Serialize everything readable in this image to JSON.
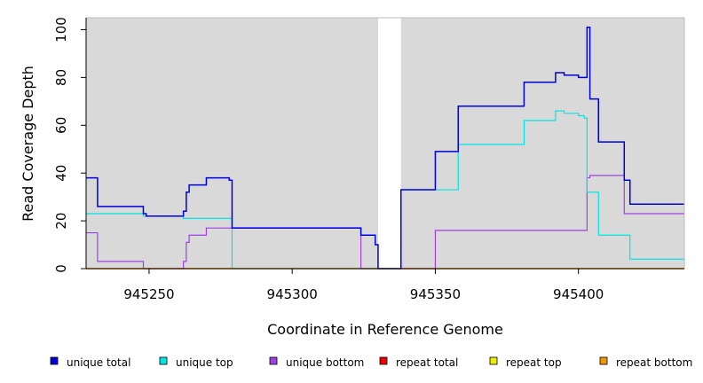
{
  "chart_data": {
    "type": "line",
    "title": "",
    "xlabel": "Coordinate in Reference Genome",
    "ylabel": "Read Coverage Depth",
    "xlim": [
      945228,
      945437
    ],
    "ylim": [
      0,
      105
    ],
    "x_ticks": [
      945250,
      945300,
      945350,
      945400
    ],
    "y_ticks": [
      0,
      20,
      40,
      60,
      80,
      100
    ],
    "background_color": "#d9d9d9",
    "gap_regions": [
      [
        945330,
        945338
      ]
    ],
    "grid": false,
    "legend_position": "bottom",
    "series": [
      {
        "name": "unique total",
        "color": "#0000dd",
        "points": [
          [
            945228,
            38
          ],
          [
            945232,
            38
          ],
          [
            945232,
            26
          ],
          [
            945248,
            26
          ],
          [
            945248,
            23
          ],
          [
            945249,
            23
          ],
          [
            945249,
            22
          ],
          [
            945262,
            22
          ],
          [
            945262,
            24
          ],
          [
            945263,
            24
          ],
          [
            945263,
            32
          ],
          [
            945264,
            32
          ],
          [
            945264,
            35
          ],
          [
            945270,
            35
          ],
          [
            945270,
            38
          ],
          [
            945278,
            38
          ],
          [
            945278,
            37
          ],
          [
            945279,
            37
          ],
          [
            945279,
            17
          ],
          [
            945324,
            17
          ],
          [
            945324,
            14
          ],
          [
            945329,
            14
          ],
          [
            945329,
            10
          ],
          [
            945330,
            10
          ],
          [
            945330,
            0
          ],
          [
            945338,
            0
          ],
          [
            945338,
            33
          ],
          [
            945350,
            33
          ],
          [
            945350,
            49
          ],
          [
            945358,
            49
          ],
          [
            945358,
            68
          ],
          [
            945381,
            68
          ],
          [
            945381,
            78
          ],
          [
            945392,
            78
          ],
          [
            945392,
            82
          ],
          [
            945395,
            82
          ],
          [
            945395,
            81
          ],
          [
            945400,
            81
          ],
          [
            945400,
            80
          ],
          [
            945403,
            80
          ],
          [
            945403,
            101
          ],
          [
            945404,
            101
          ],
          [
            945404,
            71
          ],
          [
            945407,
            71
          ],
          [
            945407,
            53
          ],
          [
            945416,
            53
          ],
          [
            945416,
            37
          ],
          [
            945418,
            37
          ],
          [
            945418,
            27
          ],
          [
            945437,
            27
          ]
        ]
      },
      {
        "name": "unique top",
        "color": "#00e5e5",
        "points": [
          [
            945228,
            23
          ],
          [
            945248,
            23
          ],
          [
            945248,
            22
          ],
          [
            945262,
            22
          ],
          [
            945262,
            21
          ],
          [
            945279,
            21
          ],
          [
            945279,
            0
          ],
          [
            945330,
            0
          ],
          [
            945330,
            0
          ],
          [
            945338,
            0
          ],
          [
            945338,
            33
          ],
          [
            945358,
            33
          ],
          [
            945358,
            52
          ],
          [
            945381,
            52
          ],
          [
            945381,
            62
          ],
          [
            945392,
            62
          ],
          [
            945392,
            66
          ],
          [
            945395,
            66
          ],
          [
            945395,
            65
          ],
          [
            945400,
            65
          ],
          [
            945400,
            64
          ],
          [
            945402,
            64
          ],
          [
            945402,
            63
          ],
          [
            945403,
            63
          ],
          [
            945403,
            32
          ],
          [
            945407,
            32
          ],
          [
            945407,
            14
          ],
          [
            945418,
            14
          ],
          [
            945418,
            4
          ],
          [
            945437,
            4
          ]
        ]
      },
      {
        "name": "unique bottom",
        "color": "#a040e0",
        "points": [
          [
            945228,
            15
          ],
          [
            945232,
            15
          ],
          [
            945232,
            3
          ],
          [
            945248,
            3
          ],
          [
            945248,
            0
          ],
          [
            945262,
            0
          ],
          [
            945262,
            3
          ],
          [
            945263,
            3
          ],
          [
            945263,
            11
          ],
          [
            945264,
            11
          ],
          [
            945264,
            14
          ],
          [
            945270,
            14
          ],
          [
            945270,
            17
          ],
          [
            945279,
            17
          ],
          [
            945279,
            17
          ],
          [
            945324,
            17
          ],
          [
            945324,
            0
          ],
          [
            945350,
            0
          ],
          [
            945350,
            16
          ],
          [
            945403,
            16
          ],
          [
            945403,
            38
          ],
          [
            945404,
            38
          ],
          [
            945404,
            39
          ],
          [
            945416,
            39
          ],
          [
            945416,
            23
          ],
          [
            945437,
            23
          ]
        ]
      },
      {
        "name": "repeat total",
        "color": "#ee0000",
        "points": [
          [
            945228,
            0
          ],
          [
            945437,
            0
          ]
        ]
      },
      {
        "name": "repeat top",
        "color": "#eeee00",
        "points": [
          [
            945228,
            0
          ],
          [
            945437,
            0
          ]
        ]
      },
      {
        "name": "repeat bottom",
        "color": "#ee9900",
        "points": [
          [
            945228,
            0
          ],
          [
            945437,
            0
          ]
        ]
      }
    ]
  }
}
